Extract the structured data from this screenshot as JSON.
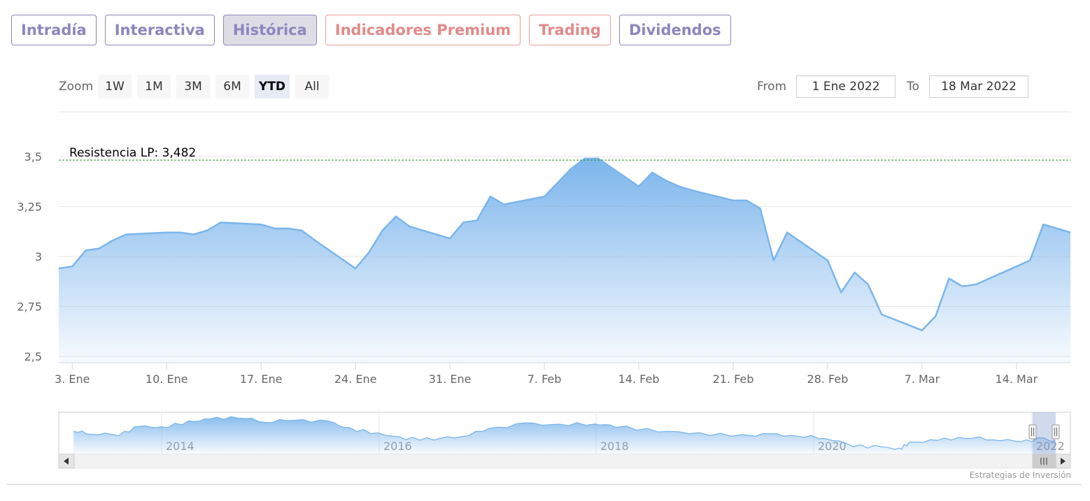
{
  "tabs": [
    {
      "label": "Intradía",
      "style": "purple"
    },
    {
      "label": "Interactiva",
      "style": "purple"
    },
    {
      "label": "Histórica",
      "style": "active"
    },
    {
      "label": "Indicadores Premium",
      "style": "red"
    },
    {
      "label": "Trading",
      "style": "red"
    },
    {
      "label": "Dividendos",
      "style": "purple"
    }
  ],
  "range_selector": {
    "zoom_label": "Zoom",
    "buttons": [
      "1W",
      "1M",
      "3M",
      "6M",
      "YTD",
      "All"
    ],
    "selected": "YTD",
    "from_label": "From",
    "from_value": "1 Ene 2022",
    "to_label": "To",
    "to_value": "18 Mar 2022"
  },
  "credits": "Estrategias de Inversión",
  "chart_data": {
    "type": "area",
    "title": "",
    "xlabel": "",
    "ylabel": "",
    "ylim": [
      2.5,
      3.5
    ],
    "y_ticks": [
      2.5,
      2.75,
      3,
      3.25,
      3.5
    ],
    "y_tick_labels": [
      "2,5",
      "2,75",
      "3",
      "3,25",
      "3,5"
    ],
    "x_range": [
      "2022-01-02",
      "2022-03-18"
    ],
    "x_ticks": [
      "2022-01-03",
      "2022-01-10",
      "2022-01-17",
      "2022-01-24",
      "2022-01-31",
      "2022-02-07",
      "2022-02-14",
      "2022-02-21",
      "2022-02-28",
      "2022-03-07",
      "2022-03-14"
    ],
    "x_tick_labels": [
      "3. Ene",
      "10. Ene",
      "17. Ene",
      "24. Ene",
      "31. Ene",
      "7. Feb",
      "14. Feb",
      "21. Feb",
      "28. Feb",
      "7. Mar",
      "14. Mar"
    ],
    "grid": true,
    "colors": {
      "line": "#7cb5ec",
      "fill_top": "#7cb5ec",
      "resistance": "#2e8b2e"
    },
    "series": [
      {
        "x": [
          "2022-01-02",
          "2022-01-03",
          "2022-01-04",
          "2022-01-05",
          "2022-01-06",
          "2022-01-07",
          "2022-01-10",
          "2022-01-11",
          "2022-01-12",
          "2022-01-13",
          "2022-01-14",
          "2022-01-17",
          "2022-01-18",
          "2022-01-19",
          "2022-01-20",
          "2022-01-21",
          "2022-01-24",
          "2022-01-25",
          "2022-01-26",
          "2022-01-27",
          "2022-01-28",
          "2022-01-31",
          "2022-02-01",
          "2022-02-02",
          "2022-02-03",
          "2022-02-04",
          "2022-02-07",
          "2022-02-08",
          "2022-02-09",
          "2022-02-10",
          "2022-02-11",
          "2022-02-14",
          "2022-02-15",
          "2022-02-16",
          "2022-02-17",
          "2022-02-18",
          "2022-02-21",
          "2022-02-22",
          "2022-02-23",
          "2022-02-24",
          "2022-02-25",
          "2022-02-28",
          "2022-03-01",
          "2022-03-02",
          "2022-03-03",
          "2022-03-04",
          "2022-03-07",
          "2022-03-08",
          "2022-03-09",
          "2022-03-10",
          "2022-03-11",
          "2022-03-14",
          "2022-03-15",
          "2022-03-16",
          "2022-03-17",
          "2022-03-18"
        ],
        "values": [
          2.94,
          2.95,
          3.03,
          3.04,
          3.08,
          3.11,
          3.12,
          3.12,
          3.11,
          3.13,
          3.17,
          3.16,
          3.14,
          3.14,
          3.13,
          3.08,
          2.94,
          3.02,
          3.13,
          3.2,
          3.15,
          3.09,
          3.17,
          3.18,
          3.3,
          3.26,
          3.3,
          3.37,
          3.44,
          3.49,
          3.49,
          3.35,
          3.42,
          3.38,
          3.35,
          3.33,
          3.28,
          3.28,
          3.24,
          2.98,
          3.12,
          2.98,
          2.82,
          2.92,
          2.86,
          2.71,
          2.63,
          2.7,
          2.89,
          2.85,
          2.86,
          2.95,
          2.98,
          3.16,
          3.14,
          3.12
        ]
      }
    ],
    "annotations": [
      {
        "type": "horizontal_line",
        "value": 3.482,
        "label": "Resistencia LP: 3,482"
      }
    ],
    "navigator": {
      "x_tick_labels": [
        "2014",
        "2016",
        "2018",
        "2020",
        "2022"
      ]
    }
  }
}
